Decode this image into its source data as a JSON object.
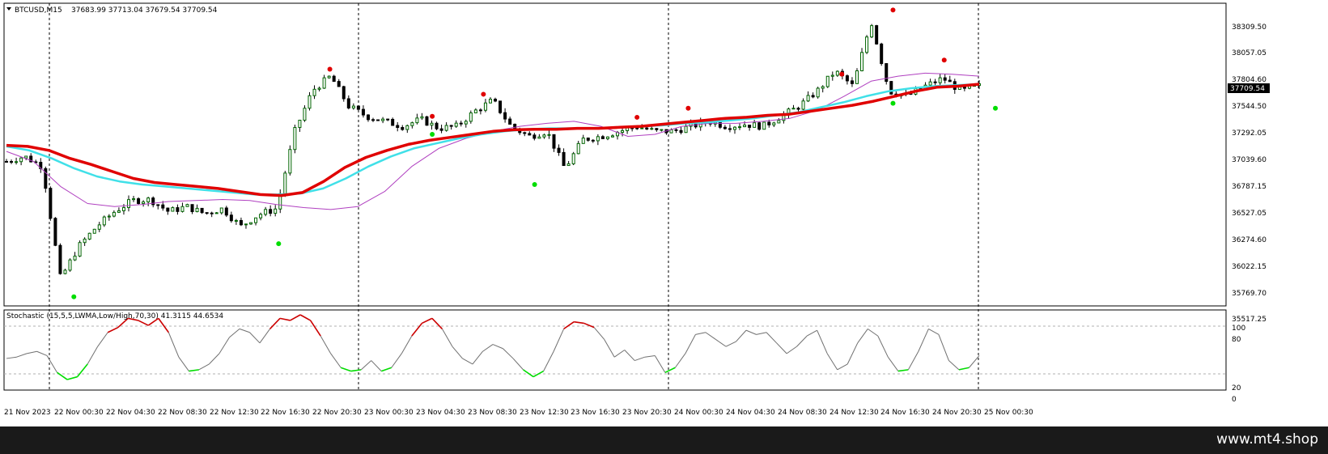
{
  "header": {
    "menu_icon": "triangle-down-icon",
    "symbol": "BTCUSD,M15",
    "ohlc": "37683.99 37713.04 37679.54 37709.54"
  },
  "price_axis": {
    "labels": [
      "38309.50",
      "38057.05",
      "37804.60",
      "37544.50",
      "37292.05",
      "37039.60",
      "36787.15",
      "36527.05",
      "36274.60",
      "36022.15",
      "35769.70",
      "35517.25"
    ],
    "current_price": "37709.54"
  },
  "oscillator": {
    "label": "Stochastic (15,5,5,LWMA,Low/High,70,30) 41.3115 44.6534",
    "levels": [
      "100",
      "80",
      "20",
      "0"
    ]
  },
  "time_axis": {
    "labels": [
      "21 Nov 2023",
      "22 Nov 00:30",
      "22 Nov 04:30",
      "22 Nov 08:30",
      "22 Nov 12:30",
      "22 Nov 16:30",
      "22 Nov 20:30",
      "23 Nov 00:30",
      "23 Nov 04:30",
      "23 Nov 08:30",
      "23 Nov 12:30",
      "23 Nov 16:30",
      "23 Nov 20:30",
      "24 Nov 00:30",
      "24 Nov 04:30",
      "24 Nov 08:30",
      "24 Nov 12:30",
      "24 Nov 16:30",
      "24 Nov 20:30",
      "25 Nov 00:30"
    ]
  },
  "colors": {
    "bull_candle": "#006400",
    "bear_candle": "#000000",
    "ma_slow": "#e00000",
    "ma_mid": "#40e0e8",
    "ma_fast": "#b040c0",
    "stoch_overbought": "#cc0000",
    "stoch_oversold": "#00dd00",
    "stoch_neutral": "#707070",
    "fractal_up": "#e00000",
    "fractal_down": "#00dd00"
  },
  "footer": {
    "brand": "www.mt4.shop"
  },
  "chart_data": {
    "type": "candlestick",
    "symbol": "BTCUSD",
    "timeframe": "M15",
    "ylim": [
      35517.25,
      38450
    ],
    "x": [
      "21 Nov 2023",
      "22 Nov 00:30",
      "22 Nov 04:30",
      "22 Nov 08:30",
      "22 Nov 12:30",
      "22 Nov 16:30",
      "22 Nov 20:30",
      "23 Nov 00:30",
      "23 Nov 04:30",
      "23 Nov 08:30",
      "23 Nov 12:30",
      "23 Nov 16:30",
      "23 Nov 20:30",
      "24 Nov 00:30",
      "24 Nov 04:30",
      "24 Nov 08:30",
      "24 Nov 12:30",
      "24 Nov 16:30",
      "24 Nov 20:30",
      "25 Nov 00:30"
    ],
    "price_path": [
      36950,
      37000,
      36900,
      35780,
      36100,
      36300,
      36450,
      36560,
      36570,
      36450,
      36500,
      36430,
      36480,
      36300,
      36420,
      36480,
      37250,
      37660,
      37800,
      37500,
      37400,
      37350,
      37300,
      37370,
      37280,
      37300,
      37450,
      37560,
      37300,
      37200,
      37250,
      36880,
      37170,
      37200,
      37250,
      37300,
      37250,
      37250,
      37300,
      37350,
      37300,
      37320,
      37300,
      37400,
      37500,
      37650,
      37850,
      37700,
      38350,
      37650,
      37600,
      37700,
      37780,
      37650,
      37700
    ],
    "ma_slow_path": [
      37110,
      37100,
      37060,
      36980,
      36920,
      36850,
      36780,
      36740,
      36720,
      36700,
      36680,
      36650,
      36620,
      36610,
      36640,
      36750,
      36890,
      36990,
      37060,
      37120,
      37160,
      37190,
      37220,
      37250,
      37265,
      37270,
      37270,
      37280,
      37280,
      37290,
      37300,
      37320,
      37340,
      37360,
      37380,
      37390,
      37410,
      37420,
      37450,
      37480,
      37510,
      37550,
      37600,
      37650,
      37690,
      37700,
      37720
    ],
    "ma_mid_path": [
      37100,
      37060,
      36980,
      36880,
      36800,
      36750,
      36720,
      36700,
      36680,
      36660,
      36640,
      36620,
      36620,
      36630,
      36680,
      36780,
      36900,
      37000,
      37080,
      37130,
      37180,
      37220,
      37250,
      37270,
      37280,
      37280,
      37280,
      37290,
      37300,
      37310,
      37330,
      37340,
      37360,
      37380,
      37410,
      37440,
      37490,
      37540,
      37600,
      37650,
      37680,
      37700,
      37710,
      37720
    ],
    "ma_fast_path": [
      37050,
      36950,
      36700,
      36530,
      36500,
      36520,
      36550,
      36560,
      36570,
      36560,
      36520,
      36490,
      36470,
      36500,
      36650,
      36900,
      37080,
      37180,
      37250,
      37300,
      37330,
      37350,
      37300,
      37200,
      37220,
      37300,
      37330,
      37330,
      37350,
      37380,
      37460,
      37600,
      37750,
      37800,
      37830,
      37820,
      37800
    ],
    "fractals_up": [
      {
        "x": "22 Nov 20:30",
        "value": 37870
      },
      {
        "x": "23 Nov 04:30",
        "value": 37400
      },
      {
        "x": "23 Nov 08:30",
        "value": 37620
      },
      {
        "x": "23 Nov 20:30",
        "value": 37390
      },
      {
        "x": "24 Nov 00:30",
        "value": 37480
      },
      {
        "x": "24 Nov 12:30",
        "value": 37820
      },
      {
        "x": "24 Nov 16:30",
        "value": 38460
      },
      {
        "x": "24 Nov 20:30",
        "value": 37960
      }
    ],
    "fractals_down": [
      {
        "x": "22 Nov 00:30",
        "value": 35600
      },
      {
        "x": "22 Nov 16:30",
        "value": 36130
      },
      {
        "x": "23 Nov 04:30",
        "value": 37220
      },
      {
        "x": "23 Nov 12:30",
        "value": 36720
      },
      {
        "x": "24 Nov 16:30",
        "value": 37530
      },
      {
        "x": "25 Nov 00:30",
        "value": 37480
      }
    ],
    "stochastic": {
      "ylim": [
        0,
        100
      ],
      "levels": [
        80,
        20
      ],
      "values": [
        38,
        40,
        45,
        48,
        42,
        18,
        8,
        12,
        30,
        55,
        75,
        82,
        95,
        92,
        85,
        95,
        75,
        40,
        20,
        22,
        30,
        45,
        68,
        80,
        75,
        60,
        80,
        95,
        92,
        100,
        92,
        70,
        45,
        25,
        20,
        22,
        35,
        20,
        25,
        45,
        70,
        88,
        95,
        80,
        55,
        38,
        30,
        48,
        58,
        52,
        38,
        22,
        12,
        20,
        48,
        80,
        90,
        88,
        82,
        65,
        40,
        50,
        35,
        40,
        42,
        18,
        25,
        45,
        72,
        75,
        65,
        55,
        62,
        78,
        72,
        75,
        60,
        45,
        55,
        70,
        78,
        45,
        22,
        30,
        60,
        80,
        70,
        40,
        20,
        22,
        48,
        80,
        72,
        35,
        22,
        25,
        42
      ]
    }
  }
}
